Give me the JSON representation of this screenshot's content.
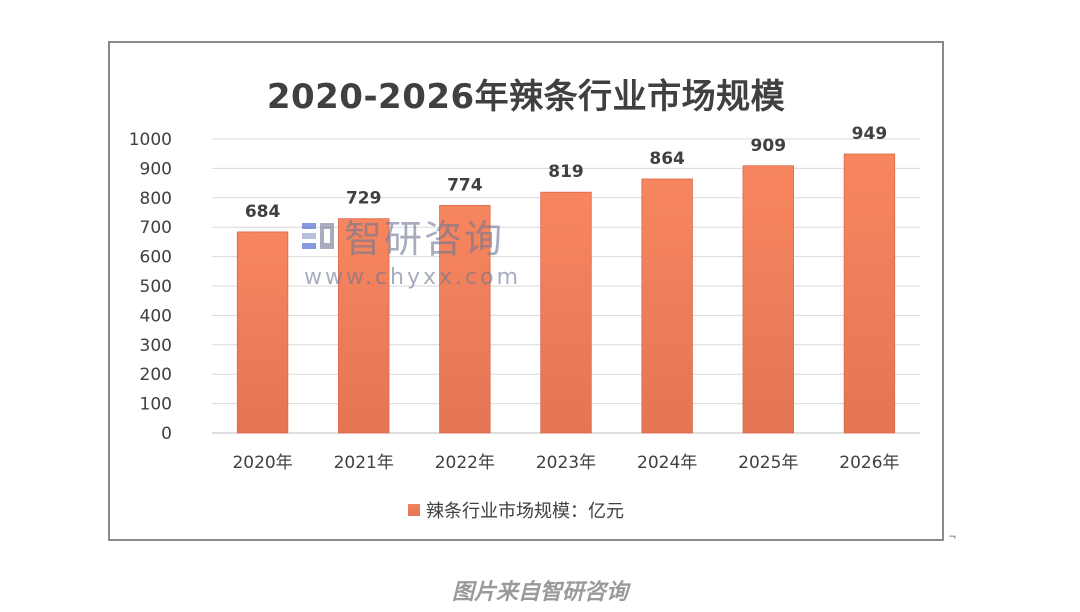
{
  "chart_data": {
    "type": "bar",
    "title": "2020-2026年辣条行业市场规模",
    "categories": [
      "2020年",
      "2021年",
      "2022年",
      "2023年",
      "2024年",
      "2025年",
      "2026年"
    ],
    "series": [
      {
        "name": "辣条行业市场规模：亿元",
        "values": [
          684,
          729,
          774,
          819,
          864,
          909,
          949
        ]
      }
    ],
    "ylim": [
      0,
      1000
    ],
    "yticks": [
      0,
      100,
      200,
      300,
      400,
      500,
      600,
      700,
      800,
      900,
      1000
    ],
    "grid": true,
    "legend_position": "bottom",
    "bar_color": "#ee7f5c",
    "data_labels": true
  },
  "watermark": {
    "brand": "智研咨询",
    "url": "www.chyxx.com"
  },
  "corner_mark": "¬",
  "caption": "图片来自智研咨询"
}
